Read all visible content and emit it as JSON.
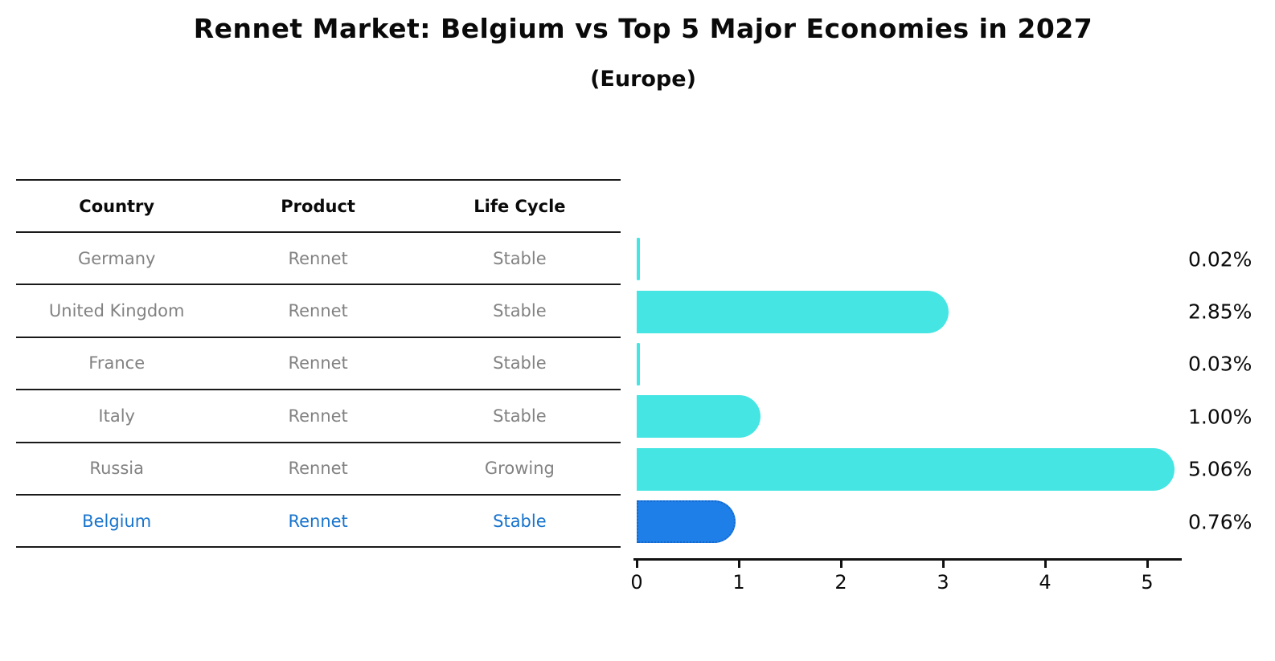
{
  "title": "Rennet Market: Belgium vs Top 5 Major Economies in 2027",
  "subtitle": "(Europe)",
  "table": {
    "headers": [
      "Country",
      "Product",
      "Life Cycle"
    ],
    "rows": [
      {
        "country": "Germany",
        "product": "Rennet",
        "life_cycle": "Stable",
        "highlight": false
      },
      {
        "country": "United Kingdom",
        "product": "Rennet",
        "life_cycle": "Stable",
        "highlight": false
      },
      {
        "country": "France",
        "product": "Rennet",
        "life_cycle": "Stable",
        "highlight": false
      },
      {
        "country": "Italy",
        "product": "Rennet",
        "life_cycle": "Stable",
        "highlight": false
      },
      {
        "country": "Russia",
        "product": "Rennet",
        "life_cycle": "Growing",
        "highlight": false
      },
      {
        "country": "Belgium",
        "product": "Rennet",
        "life_cycle": "Stable",
        "highlight": true
      }
    ]
  },
  "chart_data": {
    "type": "bar",
    "orientation": "horizontal",
    "title": "Rennet Market: Belgium vs Top 5 Major Economies in 2027 (Europe)",
    "categories": [
      "Germany",
      "United Kingdom",
      "France",
      "Italy",
      "Russia",
      "Belgium"
    ],
    "values": [
      0.02,
      2.85,
      0.03,
      1.0,
      5.06,
      0.76
    ],
    "value_labels": [
      "0.02%",
      "2.85%",
      "0.03%",
      "1.00%",
      "5.06%",
      "0.76%"
    ],
    "x_ticks": [
      0,
      1,
      2,
      3,
      4,
      5
    ],
    "xlim": [
      0,
      5.33
    ],
    "grid": false,
    "legend": "none",
    "highlight_index": 5,
    "colors": {
      "bar": "#45E5E3",
      "highlight_bar": "#1E7FE8",
      "highlight_bar_border": "#1668CC",
      "highlight_text": "#1874CD",
      "row_text": "#828282",
      "axis": "#111111"
    }
  }
}
